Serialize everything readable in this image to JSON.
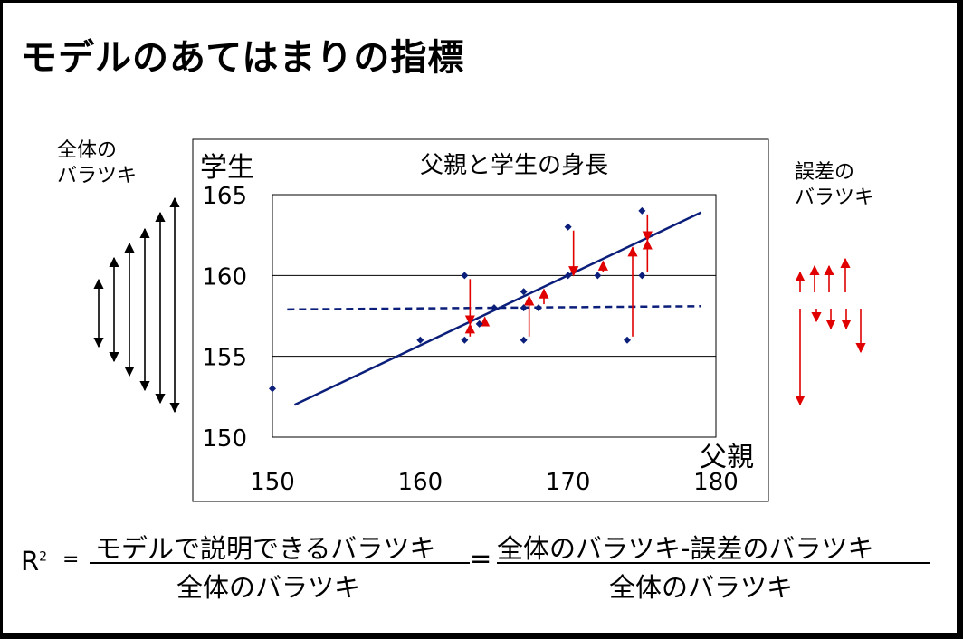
{
  "slide": {
    "title": "モデルのあてはまりの指標",
    "left_label": [
      "全体の",
      "バラツキ"
    ],
    "right_label": [
      "誤差の",
      "バラツキ"
    ]
  },
  "formula": {
    "r": "R",
    "sup": "2",
    "eq": "=",
    "numerator_1": "モデルで説明できるバラツキ",
    "denominator_1": "全体のバラツキ",
    "eq2": "=",
    "numerator_2": "全体のバラツキ-誤差のバラツキ",
    "denominator_2": "全体のバラツキ"
  },
  "chart_data": {
    "type": "scatter",
    "title": "父親と学生の身長",
    "xlabel": "父親",
    "ylabel": "学生",
    "xlim": [
      150,
      180
    ],
    "ylim": [
      150,
      165
    ],
    "xticks": [
      150,
      160,
      170,
      180
    ],
    "yticks": [
      150,
      155,
      160,
      165
    ],
    "grid": "horizontal",
    "points": [
      {
        "x": 150,
        "y": 153
      },
      {
        "x": 160,
        "y": 156
      },
      {
        "x": 163,
        "y": 160
      },
      {
        "x": 163,
        "y": 156
      },
      {
        "x": 164,
        "y": 157
      },
      {
        "x": 165,
        "y": 158
      },
      {
        "x": 167,
        "y": 159
      },
      {
        "x": 167,
        "y": 158
      },
      {
        "x": 167,
        "y": 156
      },
      {
        "x": 168,
        "y": 158
      },
      {
        "x": 170,
        "y": 160
      },
      {
        "x": 170,
        "y": 163
      },
      {
        "x": 172,
        "y": 160
      },
      {
        "x": 174,
        "y": 156
      },
      {
        "x": 175,
        "y": 164
      },
      {
        "x": 175,
        "y": 160
      }
    ],
    "regression_line": {
      "x": [
        151.5,
        179
      ],
      "y": [
        152,
        163.9
      ]
    },
    "mean_line": {
      "x": [
        151,
        179
      ],
      "y": [
        157.9,
        158.1
      ]
    },
    "point_color": "#0b1f7a",
    "line_color": "#0b1f7a",
    "residual_color": "#e00000"
  }
}
